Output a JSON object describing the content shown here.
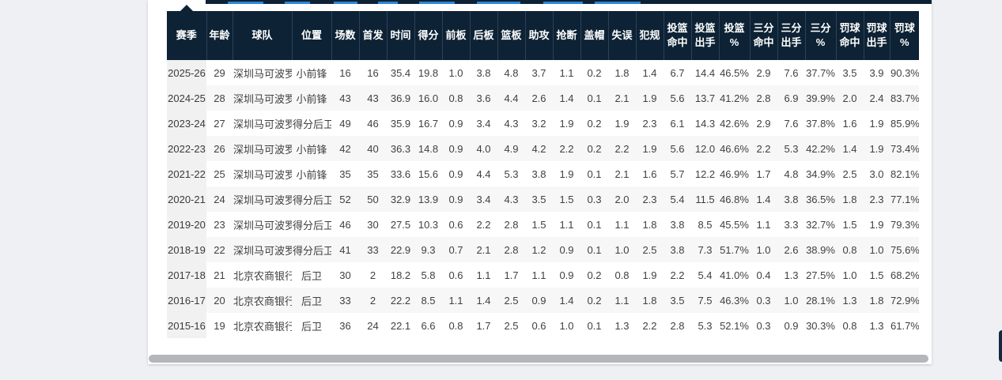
{
  "page": {
    "background_color": "#eef0f3",
    "card_color": "#ffffff"
  },
  "top_nav": {
    "bar_color": "#0d2234",
    "active_underline_color": "#2b86d9",
    "tab_count": 8
  },
  "scrollbar": {
    "thumb_color": "#b4b6b9"
  },
  "floating_button": {
    "color": "#12293e"
  },
  "table": {
    "header_bg": "#0d2234",
    "header_text_color": "#ffffff",
    "header_divider_color": "#2c4258",
    "stripe_color": "#f7f7f7",
    "season_column_bg": "#f1f1f1",
    "body_text_color": "#404040",
    "columns": [
      {
        "key": "season",
        "label": "赛季"
      },
      {
        "key": "age",
        "label": "年龄"
      },
      {
        "key": "team",
        "label": "球队"
      },
      {
        "key": "position",
        "label": "位置"
      },
      {
        "key": "games",
        "label": "场数"
      },
      {
        "key": "starts",
        "label": "首发"
      },
      {
        "key": "minutes",
        "label": "时间"
      },
      {
        "key": "points",
        "label": "得分"
      },
      {
        "key": "offensive-rebounds",
        "label": "前板"
      },
      {
        "key": "defensive-rebounds",
        "label": "后板"
      },
      {
        "key": "rebounds",
        "label": "篮板"
      },
      {
        "key": "assists",
        "label": "助攻"
      },
      {
        "key": "steals",
        "label": "抢断"
      },
      {
        "key": "blocks",
        "label": "盖帽"
      },
      {
        "key": "turnovers",
        "label": "失误"
      },
      {
        "key": "fouls",
        "label": "犯规"
      },
      {
        "key": "fg-made",
        "label": "投篮\n命中"
      },
      {
        "key": "fg-attempts",
        "label": "投篮\n出手"
      },
      {
        "key": "fg-pct",
        "label": "投篮\n%"
      },
      {
        "key": "threep-made",
        "label": "三分\n命中"
      },
      {
        "key": "threep-attempts",
        "label": "三分\n出手"
      },
      {
        "key": "threep-pct",
        "label": "三分\n%"
      },
      {
        "key": "ft-made",
        "label": "罚球\n命中"
      },
      {
        "key": "ft-attempts",
        "label": "罚球\n出手"
      },
      {
        "key": "ft-pct",
        "label": "罚球\n%"
      }
    ],
    "rows": [
      [
        "2025-26",
        "29",
        "深圳马可波罗",
        "小前锋",
        "16",
        "16",
        "35.4",
        "19.8",
        "1.0",
        "3.8",
        "4.8",
        "3.7",
        "1.1",
        "0.2",
        "1.8",
        "1.4",
        "6.7",
        "14.4",
        "46.5%",
        "2.9",
        "7.6",
        "37.7%",
        "3.5",
        "3.9",
        "90.3%"
      ],
      [
        "2024-25",
        "28",
        "深圳马可波罗",
        "小前锋",
        "43",
        "43",
        "36.9",
        "16.0",
        "0.8",
        "3.6",
        "4.4",
        "2.6",
        "1.4",
        "0.1",
        "2.1",
        "1.9",
        "5.6",
        "13.7",
        "41.2%",
        "2.8",
        "6.9",
        "39.9%",
        "2.0",
        "2.4",
        "83.7%"
      ],
      [
        "2023-24",
        "27",
        "深圳马可波罗",
        "得分后卫",
        "49",
        "46",
        "35.9",
        "16.7",
        "0.9",
        "3.4",
        "4.3",
        "3.2",
        "1.9",
        "0.2",
        "1.9",
        "2.3",
        "6.1",
        "14.3",
        "42.6%",
        "2.9",
        "7.6",
        "37.8%",
        "1.6",
        "1.9",
        "85.9%"
      ],
      [
        "2022-23",
        "26",
        "深圳马可波罗",
        "小前锋",
        "42",
        "40",
        "36.3",
        "14.8",
        "0.9",
        "4.0",
        "4.9",
        "4.2",
        "2.2",
        "0.2",
        "2.2",
        "1.9",
        "5.6",
        "12.0",
        "46.6%",
        "2.2",
        "5.3",
        "42.2%",
        "1.4",
        "1.9",
        "73.4%"
      ],
      [
        "2021-22",
        "25",
        "深圳马可波罗",
        "小前锋",
        "35",
        "35",
        "33.6",
        "15.6",
        "0.9",
        "4.4",
        "5.3",
        "3.8",
        "1.9",
        "0.1",
        "2.1",
        "1.6",
        "5.7",
        "12.2",
        "46.9%",
        "1.7",
        "4.8",
        "34.9%",
        "2.5",
        "3.0",
        "82.1%"
      ],
      [
        "2020-21",
        "24",
        "深圳马可波罗",
        "得分后卫",
        "52",
        "50",
        "32.9",
        "13.9",
        "0.9",
        "3.4",
        "4.3",
        "3.5",
        "1.5",
        "0.3",
        "2.0",
        "2.3",
        "5.4",
        "11.5",
        "46.8%",
        "1.4",
        "3.8",
        "36.5%",
        "1.8",
        "2.3",
        "77.1%"
      ],
      [
        "2019-20",
        "23",
        "深圳马可波罗",
        "得分后卫",
        "46",
        "30",
        "27.5",
        "10.3",
        "0.6",
        "2.2",
        "2.8",
        "1.5",
        "1.1",
        "0.1",
        "1.1",
        "1.8",
        "3.8",
        "8.5",
        "45.5%",
        "1.1",
        "3.3",
        "32.7%",
        "1.5",
        "1.9",
        "79.3%"
      ],
      [
        "2018-19",
        "22",
        "深圳马可波罗",
        "得分后卫",
        "41",
        "33",
        "22.9",
        "9.3",
        "0.7",
        "2.1",
        "2.8",
        "1.2",
        "0.9",
        "0.1",
        "1.0",
        "2.5",
        "3.8",
        "7.3",
        "51.7%",
        "1.0",
        "2.6",
        "38.9%",
        "0.8",
        "1.0",
        "75.6%"
      ],
      [
        "2017-18",
        "21",
        "北京农商银行",
        "后卫",
        "30",
        "2",
        "18.2",
        "5.8",
        "0.6",
        "1.1",
        "1.7",
        "1.1",
        "0.9",
        "0.2",
        "0.8",
        "1.9",
        "2.2",
        "5.4",
        "41.0%",
        "0.4",
        "1.3",
        "27.5%",
        "1.0",
        "1.5",
        "68.2%"
      ],
      [
        "2016-17",
        "20",
        "北京农商银行",
        "后卫",
        "33",
        "2",
        "22.2",
        "8.5",
        "1.1",
        "1.4",
        "2.5",
        "0.9",
        "1.4",
        "0.2",
        "1.1",
        "1.8",
        "3.5",
        "7.5",
        "46.3%",
        "0.3",
        "1.0",
        "28.1%",
        "1.3",
        "1.8",
        "72.9%"
      ],
      [
        "2015-16",
        "19",
        "北京农商银行",
        "后卫",
        "36",
        "24",
        "22.1",
        "6.6",
        "0.8",
        "1.7",
        "2.5",
        "0.6",
        "1.0",
        "0.1",
        "1.3",
        "2.2",
        "2.8",
        "5.3",
        "52.1%",
        "0.3",
        "0.9",
        "30.3%",
        "0.8",
        "1.3",
        "61.7%"
      ]
    ]
  }
}
